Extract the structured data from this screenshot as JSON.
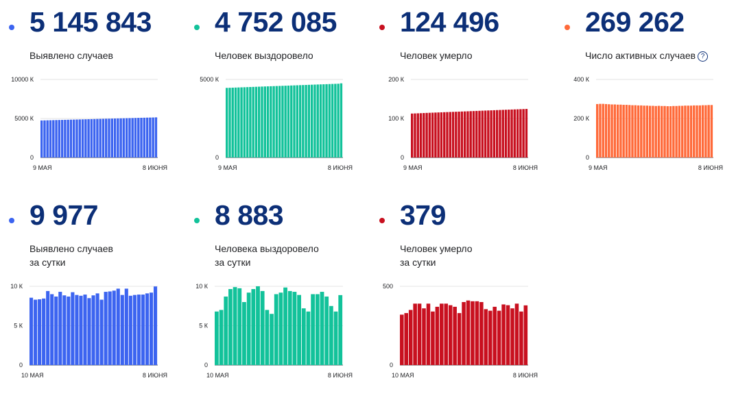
{
  "cards": [
    {
      "value": "5 145 843",
      "label": "Выявлено случаев",
      "sub": "",
      "color": "#3c64f0",
      "help_icon": false
    },
    {
      "value": "4 752 085",
      "label": "Человек выздоровело",
      "sub": "",
      "color": "#12c29a",
      "help_icon": false
    },
    {
      "value": "124 496",
      "label": "Человек умерло",
      "sub": "",
      "color": "#c8101f",
      "help_icon": false
    },
    {
      "value": "269 262",
      "label": "Число активных случаев",
      "sub": "",
      "color": "#ff6a3a",
      "help_icon": true,
      "help_glyph": "?"
    },
    {
      "value": "9 977",
      "label": "Выявлено случаев",
      "sub": "за сутки",
      "color": "#3c64f0",
      "help_icon": false
    },
    {
      "value": "8 883",
      "label": "Человека выздоровело",
      "sub": "за сутки",
      "color": "#12c29a",
      "help_icon": false
    },
    {
      "value": "379",
      "label": "Человек умерло",
      "sub": "за сутки",
      "color": "#c8101f",
      "help_icon": false
    }
  ],
  "chart_data": [
    {
      "type": "bar",
      "color": "#3c64f0",
      "ylim": [
        0,
        10000
      ],
      "yticks": [
        {
          "v": 10000,
          "t": "10000 К"
        },
        {
          "v": 5000,
          "t": "5000 К"
        },
        {
          "v": 0,
          "t": "0"
        }
      ],
      "xlabels": [
        "9 МАЯ",
        "8 ИЮНЯ"
      ],
      "values": [
        4751,
        4760,
        4770,
        4780,
        4790,
        4800,
        4810,
        4820,
        4830,
        4840,
        4850,
        4860,
        4870,
        4880,
        4890,
        4900,
        4910,
        4920,
        4930,
        4940,
        4950,
        4960,
        4970,
        4980,
        4990,
        5000,
        5010,
        5020,
        5030,
        5040,
        5050,
        5060,
        5070,
        5080,
        5090,
        5100,
        5110,
        5120,
        5130,
        5146
      ]
    },
    {
      "type": "bar",
      "color": "#12c29a",
      "ylim": [
        0,
        5000
      ],
      "yticks": [
        {
          "v": 5000,
          "t": "5000 К"
        },
        {
          "v": 0,
          "t": "0"
        }
      ],
      "xlabels": [
        "9 МАЯ",
        "8 ИЮНЯ"
      ],
      "values": [
        4460,
        4467,
        4474,
        4481,
        4488,
        4495,
        4502,
        4509,
        4516,
        4523,
        4530,
        4537,
        4544,
        4551,
        4558,
        4565,
        4572,
        4579,
        4586,
        4593,
        4600,
        4607,
        4614,
        4621,
        4628,
        4635,
        4642,
        4649,
        4656,
        4663,
        4670,
        4677,
        4684,
        4691,
        4698,
        4705,
        4712,
        4719,
        4726,
        4752
      ]
    },
    {
      "type": "bar",
      "color": "#c8101f",
      "ylim": [
        0,
        200
      ],
      "yticks": [
        {
          "v": 200,
          "t": "200 К"
        },
        {
          "v": 100,
          "t": "100 К"
        },
        {
          "v": 0,
          "t": "0"
        }
      ],
      "xlabels": [
        "9 МАЯ",
        "8 ИЮНЯ"
      ],
      "values": [
        112.7,
        113.0,
        113.3,
        113.6,
        114.0,
        114.3,
        114.6,
        114.9,
        115.2,
        115.5,
        115.8,
        116.1,
        116.4,
        116.7,
        117.0,
        117.3,
        117.6,
        117.9,
        118.2,
        118.5,
        118.8,
        119.1,
        119.4,
        119.7,
        120.0,
        120.3,
        120.6,
        120.9,
        121.2,
        121.5,
        121.8,
        122.1,
        122.4,
        122.7,
        123.0,
        123.3,
        123.6,
        123.9,
        124.2,
        124.5
      ]
    },
    {
      "type": "bar",
      "color": "#ff6a3a",
      "ylim": [
        0,
        400
      ],
      "yticks": [
        {
          "v": 400,
          "t": "400 К"
        },
        {
          "v": 200,
          "t": "200 К"
        },
        {
          "v": 0,
          "t": "0"
        }
      ],
      "xlabels": [
        "9 МАЯ",
        "8 ИЮНЯ"
      ],
      "values": [
        274,
        275,
        275,
        274,
        273,
        272,
        272,
        271,
        271,
        270,
        270,
        269,
        268,
        268,
        267,
        267,
        266,
        266,
        265,
        265,
        264,
        265,
        264,
        264,
        263,
        263,
        264,
        264,
        265,
        265,
        266,
        266,
        266,
        267,
        267,
        267,
        268,
        268,
        269,
        269
      ]
    },
    {
      "type": "bar",
      "color": "#3c64f0",
      "ylim": [
        0,
        10000
      ],
      "yticks": [
        {
          "v": 10000,
          "t": "10 К"
        },
        {
          "v": 5000,
          "t": "5 К"
        },
        {
          "v": 0,
          "t": "0"
        }
      ],
      "xlabels": [
        "10 МАЯ",
        "8 ИЮНЯ"
      ],
      "values": [
        8550,
        8300,
        8350,
        8450,
        9400,
        9000,
        8700,
        9300,
        8850,
        8700,
        9250,
        8900,
        8800,
        8950,
        8500,
        8850,
        9100,
        8300,
        9300,
        9350,
        9450,
        9700,
        8900,
        9700,
        8800,
        8900,
        8950,
        8950,
        9100,
        9200,
        9977
      ]
    },
    {
      "type": "bar",
      "color": "#12c29a",
      "ylim": [
        0,
        10000
      ],
      "yticks": [
        {
          "v": 10000,
          "t": "10 К"
        },
        {
          "v": 5000,
          "t": "5 К"
        },
        {
          "v": 0,
          "t": "0"
        }
      ],
      "xlabels": [
        "10 МАЯ",
        "8 ИЮНЯ"
      ],
      "values": [
        6800,
        7000,
        8700,
        9650,
        9900,
        9750,
        8000,
        9200,
        9650,
        10000,
        9400,
        7000,
        6500,
        9000,
        9200,
        9850,
        9400,
        9300,
        8900,
        7200,
        6800,
        9000,
        9000,
        9300,
        8700,
        7500,
        6800,
        8883
      ]
    },
    {
      "type": "bar",
      "color": "#c8101f",
      "ylim": [
        0,
        500
      ],
      "yticks": [
        {
          "v": 500,
          "t": "500"
        },
        {
          "v": 0,
          "t": "0"
        }
      ],
      "xlabels": [
        "10 МАЯ",
        "8 ИЮНЯ"
      ],
      "values": [
        320,
        330,
        350,
        390,
        390,
        360,
        390,
        340,
        370,
        390,
        390,
        380,
        370,
        330,
        400,
        410,
        405,
        405,
        400,
        355,
        345,
        370,
        345,
        385,
        380,
        360,
        390,
        340,
        379
      ]
    }
  ]
}
